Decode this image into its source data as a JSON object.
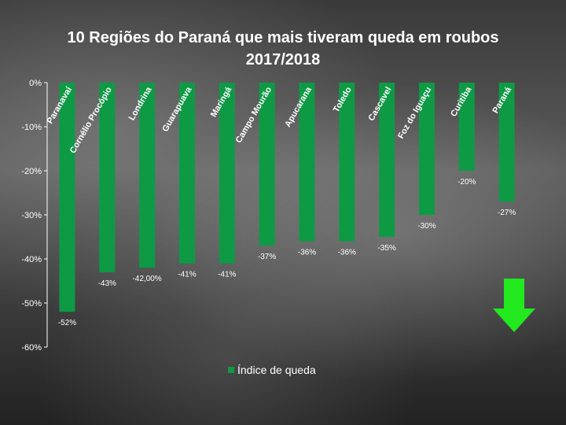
{
  "title": "10 Regiões do Paraná que mais tiveram queda em roubos 2017/2018",
  "legend": {
    "label": "Índice de queda"
  },
  "colors": {
    "bar": "#0e9a45",
    "arrow": "#22e81e",
    "text": "#ffffff",
    "gridline": "#ffffff"
  },
  "chart_data": {
    "type": "bar",
    "title": "10 Regiões do Paraná que mais tiveram queda em roubos 2017/2018",
    "categories": [
      "Paranavaí",
      "Cornélio Procópio",
      "Londrina",
      "Guarapuava",
      "Maringá",
      "Campo Mourão",
      "Apucarana",
      "Toledo",
      "Cascavel",
      "Foz do Iguaçu",
      "Curitiba",
      "Paraná"
    ],
    "series": [
      {
        "name": "Índice de queda",
        "values": [
          -52,
          -43,
          -42,
          -41,
          -41,
          -37,
          -36,
          -36,
          -35,
          -30,
          -20,
          -27
        ],
        "labels": [
          "-52%",
          "-43%",
          "-42,00%",
          "-41%",
          "-41%",
          "-37%",
          "-36%",
          "-36%",
          "-35%",
          "-30%",
          "-20%",
          "-27%"
        ]
      }
    ],
    "ylim": [
      -60,
      0
    ],
    "yticks": [
      0,
      -10,
      -20,
      -30,
      -40,
      -50,
      -60
    ],
    "ytick_labels": [
      "0%",
      "-10%",
      "-20%",
      "-30%",
      "-40%",
      "-50%",
      "-60%"
    ],
    "grid": true,
    "legend_position": "bottom"
  }
}
